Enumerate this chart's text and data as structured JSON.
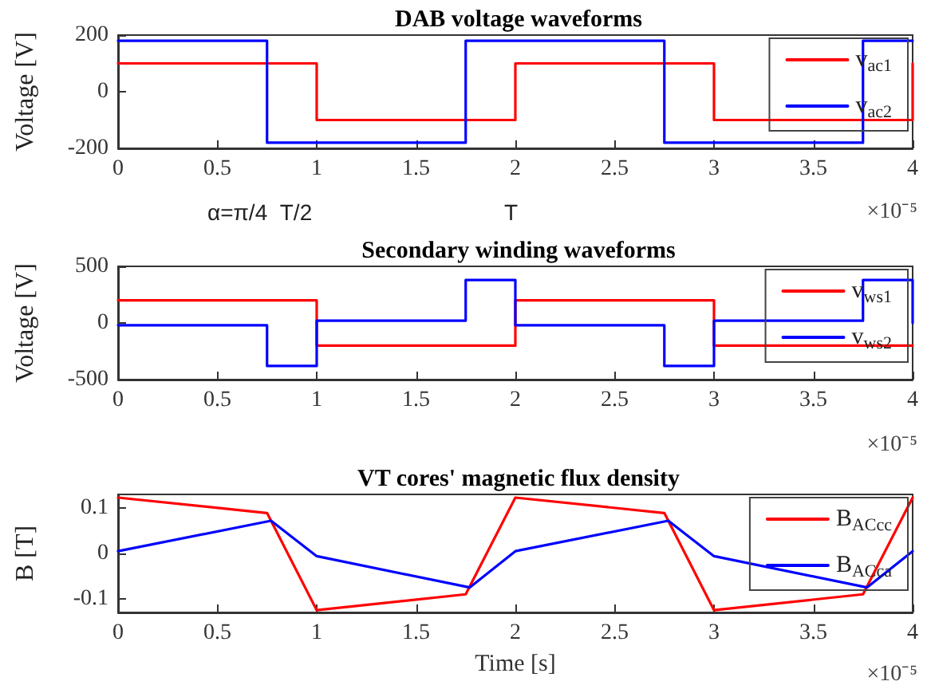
{
  "chart_data": [
    {
      "type": "line",
      "title": "DAB voltage waveforms",
      "ylabel": "Voltage [V]",
      "annotations": [
        "×10⁻⁵",
        "α=π/4  T/2",
        "T"
      ],
      "xlim": [
        0,
        4
      ],
      "xticks": [
        0,
        0.5,
        1,
        1.5,
        2,
        2.5,
        3,
        3.5,
        4
      ],
      "ylim": [
        -200,
        200
      ],
      "yticks": [
        -200,
        0,
        200
      ],
      "legend": "top right",
      "marker": "none",
      "grid": false,
      "series": [
        {
          "name": "v$_{ac1}$",
          "color": "#ff0000",
          "x": [
            0,
            1,
            1,
            2,
            2,
            3,
            3,
            4,
            4
          ],
          "values": [
            100,
            100,
            -100,
            -100,
            100,
            100,
            -100,
            -100,
            100
          ]
        },
        {
          "name": "v$_{ac2}$",
          "color": "#0000ff",
          "x": [
            0,
            0.75,
            0.75,
            1.75,
            1.75,
            2.75,
            2.75,
            3.75,
            3.75,
            4
          ],
          "values": [
            180,
            180,
            -180,
            -180,
            180,
            180,
            -180,
            -180,
            180,
            180
          ]
        }
      ]
    },
    {
      "type": "line",
      "title": "Secondary winding waveforms",
      "ylabel": "Voltage [V]",
      "annotations": [
        "×10⁻⁵"
      ],
      "xlim": [
        0,
        4
      ],
      "xticks": [
        0,
        0.5,
        1,
        1.5,
        2,
        2.5,
        3,
        3.5,
        4
      ],
      "ylim": [
        -500,
        500
      ],
      "yticks": [
        -500,
        0,
        500
      ],
      "legend": "top right",
      "marker": "none",
      "grid": false,
      "series": [
        {
          "name": "v$_{ws1}$",
          "color": "#ff0000",
          "x": [
            0,
            1,
            1,
            2,
            2,
            3,
            3,
            4
          ],
          "values": [
            200,
            200,
            -200,
            -200,
            200,
            200,
            -200,
            -200
          ]
        },
        {
          "name": "v$_{ws2}$",
          "color": "#0000ff",
          "x": [
            0,
            0.75,
            0.75,
            1,
            1,
            1.75,
            1.75,
            2,
            2,
            2.75,
            2.75,
            3,
            3,
            3.75,
            3.75,
            4,
            4
          ],
          "values": [
            -20,
            -20,
            -380,
            -380,
            20,
            20,
            380,
            380,
            -20,
            -20,
            -380,
            -380,
            20,
            20,
            380,
            380,
            0
          ]
        }
      ]
    },
    {
      "type": "line",
      "title": "VT cores' magnetic flux density",
      "xlabel": "Time [s]",
      "ylabel": "B [T]",
      "annotations": [
        "×10⁻⁵"
      ],
      "xlim": [
        0,
        4
      ],
      "xticks": [
        0,
        0.5,
        1,
        1.5,
        2,
        2.5,
        3,
        3.5,
        4
      ],
      "ylim": [
        -0.13,
        0.13
      ],
      "yticks": [
        -0.1,
        0,
        0.1
      ],
      "legend": "top right",
      "marker": "none",
      "grid": false,
      "series": [
        {
          "name": "B$_{ACcc}$",
          "color": "#ff0000",
          "x": [
            0,
            0.75,
            1,
            1.75,
            2,
            2.75,
            3,
            3.75,
            4
          ],
          "values": [
            0.123,
            0.089,
            -0.125,
            -0.09,
            0.123,
            0.089,
            -0.125,
            -0.09,
            0.123
          ]
        },
        {
          "name": "B$_{ACca}$",
          "color": "#0000ff",
          "x": [
            0,
            0.77,
            1,
            1.77,
            2,
            2.77,
            3,
            3.77,
            4
          ],
          "values": [
            0.005,
            0.072,
            -0.006,
            -0.075,
            0.005,
            0.072,
            -0.006,
            -0.075,
            0.005
          ]
        }
      ]
    }
  ]
}
